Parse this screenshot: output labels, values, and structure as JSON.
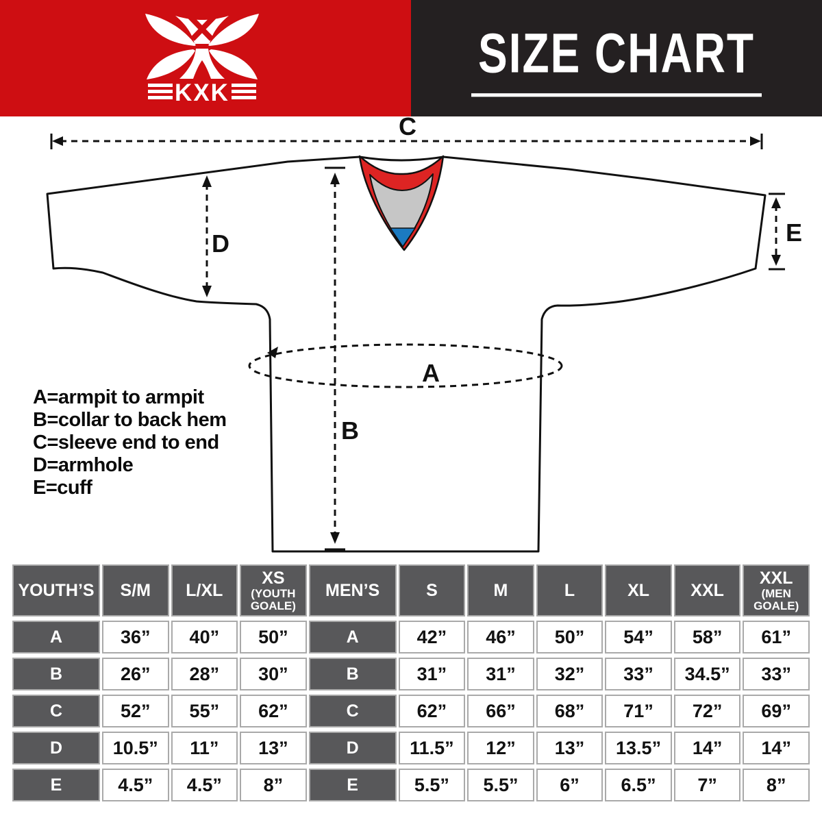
{
  "colors": {
    "brand_red": "#ce0e12",
    "header_black": "#242021",
    "collar_red": "#dd2423",
    "collar_gray": "#c6c6c6",
    "collar_blue": "#1b7ac1",
    "table_dark": "#58585a",
    "table_border": "#a9a9a9",
    "ink": "#111111"
  },
  "header": {
    "logo_text": "KXK",
    "title": "SIZE CHART"
  },
  "diagram": {
    "labels": {
      "A": "A",
      "B": "B",
      "C": "C",
      "D": "D",
      "E": "E"
    },
    "legend": [
      "A=armpit to armpit",
      "B=collar to back hem",
      "C=sleeve end to end",
      "D=armhole",
      "E=cuff"
    ]
  },
  "table": {
    "header_cells": [
      {
        "text": "YOUTH’S"
      },
      {
        "text": "S/M"
      },
      {
        "text": "L/XL"
      },
      {
        "text": "XS",
        "sub": "(YOUTH GOALE)"
      },
      {
        "text": "MEN’S"
      },
      {
        "text": "S"
      },
      {
        "text": "M"
      },
      {
        "text": "L"
      },
      {
        "text": "XL"
      },
      {
        "text": "XXL"
      },
      {
        "text": "XXL",
        "sub": "(MEN GOALE)"
      }
    ],
    "rows": [
      {
        "cells": [
          "A",
          "36”",
          "40”",
          "50”",
          "A",
          "42”",
          "46”",
          "50”",
          "54”",
          "58”",
          "61”"
        ]
      },
      {
        "cells": [
          "B",
          "26”",
          "28”",
          "30”",
          "B",
          "31”",
          "31”",
          "32”",
          "33”",
          "34.5”",
          "33”"
        ]
      },
      {
        "cells": [
          "C",
          "52”",
          "55”",
          "62”",
          "C",
          "62”",
          "66”",
          "68”",
          "71”",
          "72”",
          "69”"
        ]
      },
      {
        "cells": [
          "D",
          "10.5”",
          "11”",
          "13”",
          "D",
          "11.5”",
          "12”",
          "13”",
          "13.5”",
          "14”",
          "14”"
        ]
      },
      {
        "cells": [
          "E",
          "4.5”",
          "4.5”",
          "8”",
          "E",
          "5.5”",
          "5.5”",
          "6”",
          "6.5”",
          "7”",
          "8”"
        ]
      }
    ]
  }
}
